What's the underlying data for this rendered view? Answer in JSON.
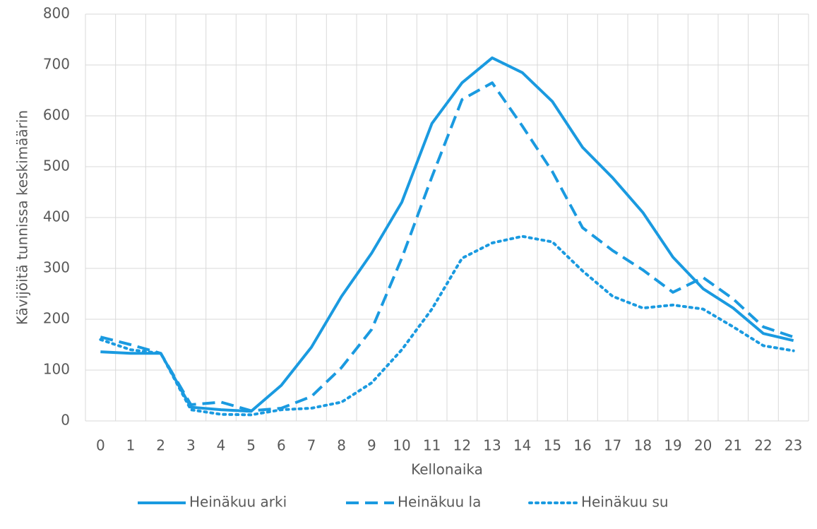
{
  "chart_data": {
    "type": "line",
    "xlabel": "Kellonaika",
    "ylabel": "Kävijöitä tunnissa keskimäärin",
    "categories": [
      "0",
      "1",
      "2",
      "3",
      "4",
      "5",
      "6",
      "7",
      "8",
      "9",
      "10",
      "11",
      "12",
      "13",
      "14",
      "15",
      "16",
      "17",
      "18",
      "19",
      "20",
      "21",
      "22",
      "23"
    ],
    "series": [
      {
        "name": "Heinäkuu arki",
        "color": "#1a9ae0",
        "style": "solid",
        "values": [
          136,
          133,
          133,
          27,
          22,
          19,
          70,
          145,
          245,
          330,
          430,
          585,
          665,
          714,
          685,
          628,
          538,
          478,
          410,
          322,
          260,
          222,
          172,
          158
        ]
      },
      {
        "name": "Heinäkuu la",
        "color": "#1a9ae0",
        "style": "dashed",
        "values": [
          165,
          150,
          133,
          32,
          37,
          20,
          25,
          48,
          105,
          180,
          320,
          480,
          632,
          665,
          580,
          490,
          380,
          335,
          297,
          253,
          282,
          240,
          185,
          165
        ]
      },
      {
        "name": "Heinäkuu su",
        "color": "#1a9ae0",
        "style": "dotted",
        "values": [
          160,
          140,
          133,
          22,
          13,
          12,
          22,
          25,
          37,
          75,
          140,
          220,
          320,
          350,
          363,
          352,
          295,
          245,
          222,
          228,
          220,
          185,
          148,
          138
        ]
      }
    ],
    "ylim": [
      0,
      800
    ],
    "yticks": [
      0,
      100,
      200,
      300,
      400,
      500,
      600,
      700,
      800
    ],
    "grid": true,
    "legend": "bottom"
  }
}
